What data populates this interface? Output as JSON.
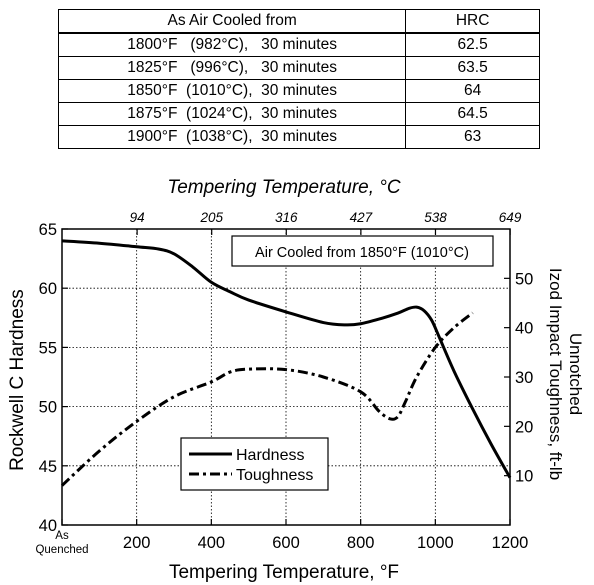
{
  "table": {
    "headers": [
      "As Air Cooled from",
      "HRC"
    ],
    "rows": [
      [
        "1800°F   (982°C),   30 minutes",
        "62.5"
      ],
      [
        "1825°F   (996°C),   30 minutes",
        "63.5"
      ],
      [
        "1850°F  (1010°C),  30 minutes",
        "64"
      ],
      [
        "1875°F  (1024°C),  30 minutes",
        "64.5"
      ],
      [
        "1900°F  (1038°C),  30 minutes",
        "63"
      ]
    ]
  },
  "chart_data": {
    "type": "line",
    "title": "",
    "xlabel": "Tempering Temperature, °F",
    "x2label": "Tempering Temperature, °C",
    "ylabel": "Rockwell C Hardness",
    "y2label_lines": [
      "Unnotched",
      "Izod Impact Toughness, ft-lb"
    ],
    "annotation": "Air Cooled from 1850°F (1010°C)",
    "xlim": [
      0,
      1200
    ],
    "ylim": [
      40,
      65
    ],
    "y2lim": [
      0,
      60
    ],
    "x_ticks": [
      {
        "value": 0,
        "label": "As"
      },
      {
        "value": 200,
        "label": "200"
      },
      {
        "value": 400,
        "label": "400"
      },
      {
        "value": 600,
        "label": "600"
      },
      {
        "value": 800,
        "label": "800"
      },
      {
        "value": 1000,
        "label": "1000"
      },
      {
        "value": 1200,
        "label": "1200"
      }
    ],
    "x_tick0_line2": "Quenched",
    "x2_ticks": [
      {
        "value": 201.2,
        "label": "94"
      },
      {
        "value": 401,
        "label": "205"
      },
      {
        "value": 600.8,
        "label": "316"
      },
      {
        "value": 800.6,
        "label": "427"
      },
      {
        "value": 1000.4,
        "label": "538"
      },
      {
        "value": 1200.2,
        "label": "649"
      }
    ],
    "y_ticks": [
      40,
      45,
      50,
      55,
      60,
      65
    ],
    "y2_ticks": [
      10,
      20,
      30,
      40,
      50
    ],
    "grid": true,
    "legend_position": "lower-left",
    "series": [
      {
        "name": "Hardness",
        "axis": "left",
        "style": "solid",
        "x": [
          0,
          100,
          200,
          260,
          300,
          350,
          400,
          450,
          500,
          600,
          700,
          760,
          800,
          850,
          900,
          930,
          950,
          970,
          990,
          1010,
          1050,
          1100,
          1150,
          1200
        ],
        "values": [
          64,
          63.8,
          63.5,
          63.3,
          62.9,
          61.8,
          60.5,
          59.7,
          59.0,
          58.0,
          57.1,
          56.9,
          57.0,
          57.4,
          57.9,
          58.3,
          58.4,
          58.1,
          57.3,
          55.9,
          53.0,
          49.8,
          46.8,
          44.0
        ]
      },
      {
        "name": "Toughness",
        "axis": "right",
        "style": "dash-dot",
        "x": [
          0,
          100,
          200,
          300,
          400,
          450,
          500,
          600,
          700,
          800,
          850,
          880,
          900,
          920,
          950,
          1000,
          1050,
          1100
        ],
        "values": [
          8,
          15,
          21,
          26,
          29,
          31,
          31.6,
          31.5,
          30,
          27,
          23,
          21.5,
          22,
          25,
          30,
          36,
          40,
          43
        ]
      }
    ]
  }
}
